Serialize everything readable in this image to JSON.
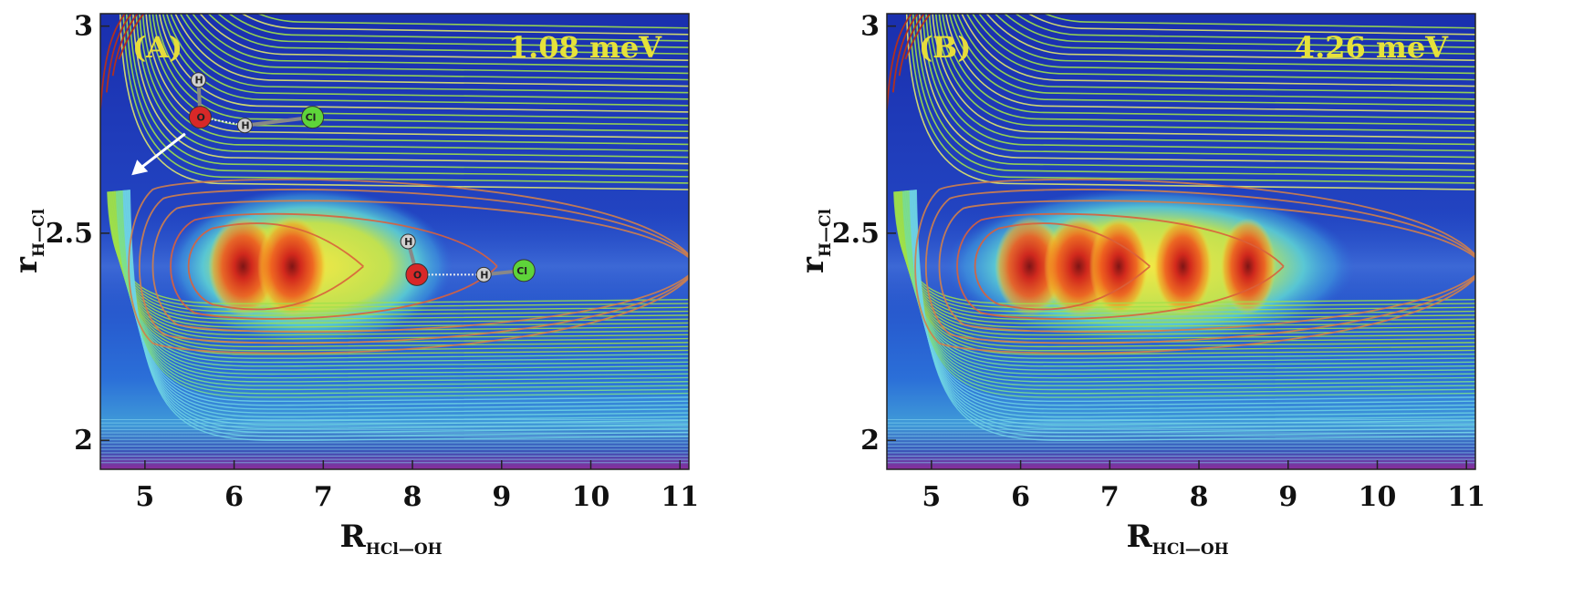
{
  "chart_data": [
    {
      "type": "heatmap",
      "panel_label": "(A)",
      "energy_label": "1.08 meV",
      "xlabel": "R",
      "xlabel_sub": "HCl—OH",
      "ylabel": "r",
      "ylabel_sub": "H—Cl",
      "xlim": [
        4.5,
        11.1
      ],
      "ylim": [
        1.93,
        3.03
      ],
      "xticks": [
        5,
        6,
        7,
        8,
        9,
        10,
        11
      ],
      "yticks": [
        2,
        2.5,
        3
      ],
      "ytick_labels": [
        "2",
        "2.5",
        "3"
      ],
      "wavefunction_center_r": 2.42,
      "wavefunction_lobes": [
        {
          "R": 6.1,
          "amp": 1.0
        },
        {
          "R": 6.65,
          "amp": 1.0
        }
      ],
      "outer_glow": {
        "R_min": 5.4,
        "R_max": 8.3
      },
      "molecules": [
        {
          "atoms": [
            {
              "el": "H",
              "R": 5.6,
              "r": 2.87
            },
            {
              "el": "O",
              "R": 5.62,
              "r": 2.78
            },
            {
              "el": "H",
              "R": 6.12,
              "r": 2.76
            },
            {
              "el": "Cl",
              "R": 6.88,
              "r": 2.78
            }
          ]
        },
        {
          "atoms": [
            {
              "el": "H",
              "R": 7.95,
              "r": 2.48
            },
            {
              "el": "O",
              "R": 8.05,
              "r": 2.4
            },
            {
              "el": "H",
              "R": 8.8,
              "r": 2.4
            },
            {
              "el": "Cl",
              "R": 9.25,
              "r": 2.41
            }
          ]
        }
      ],
      "arrow": {
        "from": [
          5.45,
          2.74
        ],
        "to": [
          4.85,
          2.64
        ]
      }
    },
    {
      "type": "heatmap",
      "panel_label": "(B)",
      "energy_label": "4.26 meV",
      "xlabel": "R",
      "xlabel_sub": "HCl—OH",
      "ylabel": "r",
      "ylabel_sub": "H—Cl",
      "xlim": [
        4.5,
        11.1
      ],
      "ylim": [
        1.93,
        3.03
      ],
      "xticks": [
        5,
        6,
        7,
        8,
        9,
        10,
        11
      ],
      "yticks": [
        2,
        2.5,
        3
      ],
      "ytick_labels": [
        "2",
        "2.5",
        "3"
      ],
      "wavefunction_center_r": 2.42,
      "wavefunction_lobes": [
        {
          "R": 6.1,
          "amp": 1.0
        },
        {
          "R": 6.65,
          "amp": 1.0
        },
        {
          "R": 7.1,
          "amp": 0.85
        },
        {
          "R": 7.82,
          "amp": 0.85
        },
        {
          "R": 8.55,
          "amp": 0.8
        }
      ],
      "outer_glow": {
        "R_min": 5.3,
        "R_max": 9.6
      },
      "molecules": [],
      "arrow": null
    }
  ],
  "colors": {
    "background_deep": "#1e3fb5",
    "contour_green": "#9fe04a",
    "contour_orange": "#d2804a",
    "hot_red": "#d9241c",
    "glow_yellow": "#f0e63c",
    "glow_cyan": "#54d2dc",
    "atom_O": "#d82828",
    "atom_H": "#d0d0d0",
    "atom_Cl": "#5ed43a"
  }
}
